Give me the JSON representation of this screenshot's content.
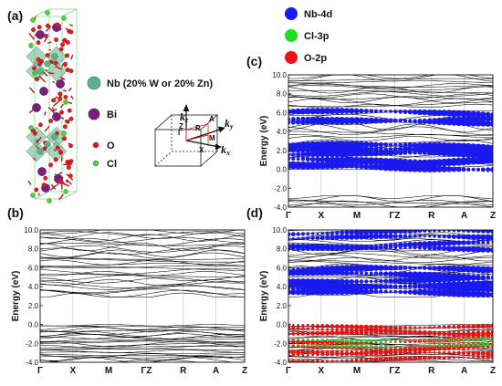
{
  "panel_labels": {
    "a": "(a)",
    "b": "(b)",
    "c": "(c)",
    "d": "(d)"
  },
  "structure_legend": {
    "nb": "Nb  (20% W or 20%  Zn)",
    "bi": "Bi",
    "o": "O",
    "cl": "Cl"
  },
  "bz": {
    "kz": "k",
    "kz_sub": "z",
    "ky": "k",
    "ky_sub": "y",
    "kx": "k",
    "kx_sub": "x",
    "gamma": "Γ",
    "z": "Z",
    "r": "R",
    "a": "A",
    "m": "M",
    "x": "X"
  },
  "orbital_legend": [
    {
      "label": "Nb-4d",
      "color": "#1a1aee"
    },
    {
      "label": "Cl-3p",
      "color": "#22dd22"
    },
    {
      "label": "O-2p",
      "color": "#ee1111"
    }
  ],
  "colors": {
    "nb": "#5fb08a",
    "bi": "#7a1f7f",
    "o": "#e01b1b",
    "cl": "#4ccf3c",
    "bands": "#000000"
  },
  "chart_data": [
    {
      "id": "b",
      "type": "line",
      "title": "",
      "ylabel": "Energy (eV)",
      "ylim": [
        -4.0,
        10.0
      ],
      "yticks": [
        "10.0",
        "8.0",
        "6.0",
        "4.0",
        "2.0",
        "0.0",
        "-2.0",
        "-4.0"
      ],
      "kpoints": [
        "Γ",
        "X",
        "M",
        "ΓZ",
        "R",
        "A",
        "Z"
      ],
      "gap": [
        0.0,
        2.9
      ],
      "valence_range": [
        -4.0,
        0.0
      ],
      "conduction_range": [
        2.9,
        10.0
      ]
    },
    {
      "id": "c",
      "type": "scatter",
      "title": "",
      "ylabel": "Energy (eV)",
      "ylim": [
        -4.0,
        10.0
      ],
      "yticks": [
        "10.0",
        "8.0",
        "6.0",
        "4.0",
        "2.0",
        "0.0",
        "-2.0",
        "-4.0"
      ],
      "kpoints": [
        "Γ",
        "X",
        "M",
        "ΓZ",
        "R",
        "A",
        "Z"
      ],
      "series": [
        {
          "name": "Nb-4d",
          "range": [
            0.0,
            6.2
          ]
        }
      ],
      "gaps": [
        [
          -2.8,
          0.0
        ],
        [
          6.2,
          6.6
        ]
      ]
    },
    {
      "id": "d",
      "type": "scatter",
      "title": "",
      "ylabel": "Energy (eV)",
      "ylim": [
        -4.0,
        10.0
      ],
      "yticks": [
        "10.0",
        "8.0",
        "6.0",
        "4.0",
        "2.0",
        "0.0",
        "-2.0",
        "-4.0"
      ],
      "kpoints": [
        "Γ",
        "X",
        "M",
        "ΓZ",
        "R",
        "A",
        "Z"
      ],
      "series": [
        {
          "name": "Nb-4d",
          "range": [
            3.0,
            10.0
          ]
        },
        {
          "name": "O-2p",
          "range": [
            -4.0,
            0.2
          ]
        },
        {
          "name": "Cl-3p",
          "range": [
            -2.4,
            -1.2
          ]
        }
      ],
      "gap": [
        0.2,
        2.9
      ]
    }
  ]
}
